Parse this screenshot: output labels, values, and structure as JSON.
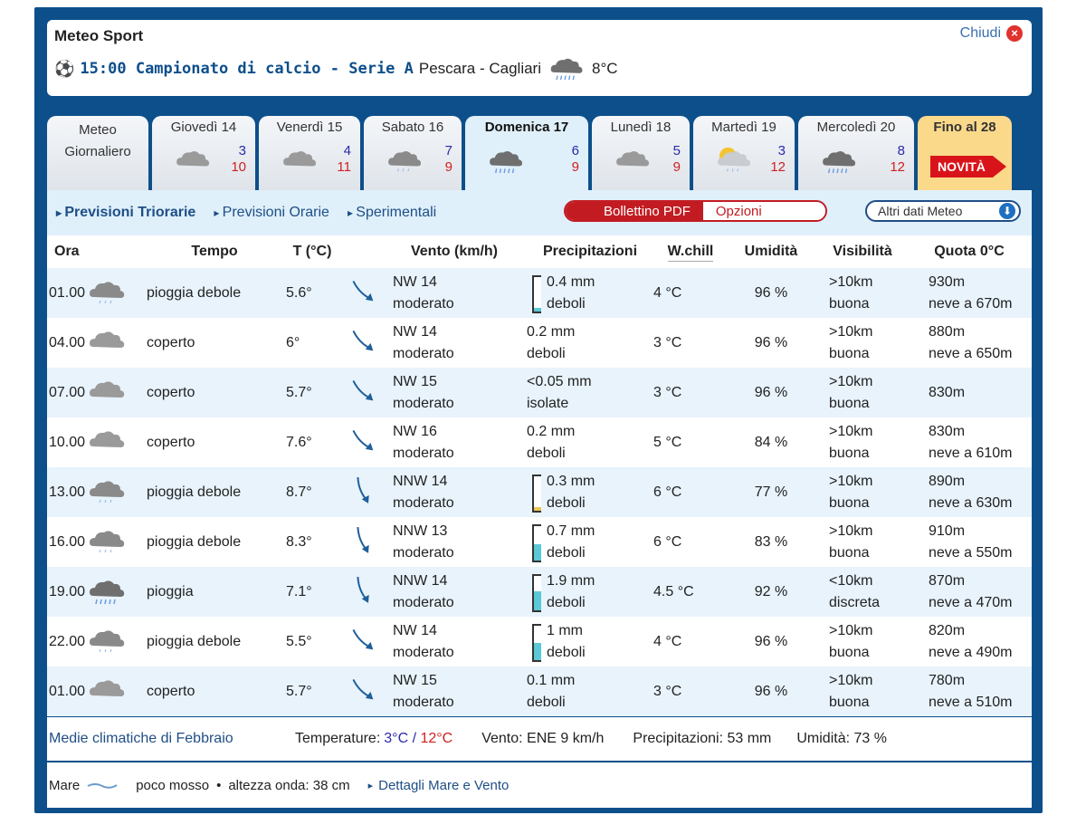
{
  "header": {
    "title": "Meteo Sport",
    "event": "15:00 Campionato di calcio - Serie A",
    "match": "Pescara - Cagliari",
    "temp": "8°C",
    "close": "Chiudi"
  },
  "tabs": [
    {
      "label": "Meteo Giornaliero"
    },
    {
      "label": "Giovedì 14",
      "icon": "cloud",
      "min": "3",
      "max": "10"
    },
    {
      "label": "Venerdì 15",
      "icon": "cloud",
      "min": "4",
      "max": "11"
    },
    {
      "label": "Sabato 16",
      "icon": "rain-light",
      "min": "7",
      "max": "9"
    },
    {
      "label": "Domenica 17",
      "icon": "rain",
      "min": "6",
      "max": "9",
      "active": true
    },
    {
      "label": "Lunedì 18",
      "icon": "cloud",
      "min": "5",
      "max": "9"
    },
    {
      "label": "Martedì 19",
      "icon": "sun-cloud-rain",
      "min": "3",
      "max": "12"
    },
    {
      "label": "Mercoledì 20",
      "icon": "rain",
      "min": "8",
      "max": "12"
    },
    {
      "label": "Fino al 28",
      "badge": "NOVITÀ"
    }
  ],
  "subnav": {
    "links": [
      "Previsioni Triorarie",
      "Previsioni Orarie",
      "Sperimentali"
    ],
    "pdf": "Bollettino PDF",
    "options": "Opzioni",
    "altri": "Altri dati Meteo"
  },
  "columns": [
    "Ora",
    "Tempo",
    "T (°C)",
    "",
    "Vento (km/h)",
    "Precipitazioni",
    "W.chill",
    "Umidità",
    "Visibilità",
    "Quota 0°C"
  ],
  "rows": [
    {
      "ora": "01.00",
      "icon": "rain-light",
      "tempo": "pioggia debole",
      "t": "5.6°",
      "dir": "NW",
      "wind": "NW 14",
      "wdesc": "moderato",
      "p": "0.4 mm",
      "pdesc": "deboli",
      "pfill": 0.1,
      "wc": "4 °C",
      "um": "96 %",
      "vis": ">10km",
      "visd": "buona",
      "q": "930m",
      "qn": "neve a 670m"
    },
    {
      "ora": "04.00",
      "icon": "cloud",
      "tempo": "coperto",
      "t": "6°",
      "dir": "NW",
      "wind": "NW 14",
      "wdesc": "moderato",
      "p": "0.2 mm",
      "pdesc": "deboli",
      "wc": "3 °C",
      "um": "96 %",
      "vis": ">10km",
      "visd": "buona",
      "q": "880m",
      "qn": "neve a 650m"
    },
    {
      "ora": "07.00",
      "icon": "cloud",
      "tempo": "coperto",
      "t": "5.7°",
      "dir": "NW",
      "wind": "NW 15",
      "wdesc": "moderato",
      "p": "<0.05 mm",
      "pdesc": "isolate",
      "wc": "3 °C",
      "um": "96 %",
      "vis": ">10km",
      "visd": "buona",
      "q": "830m",
      "qn": ""
    },
    {
      "ora": "10.00",
      "icon": "cloud",
      "tempo": "coperto",
      "t": "7.6°",
      "dir": "NW",
      "wind": "NW 16",
      "wdesc": "moderato",
      "p": "0.2 mm",
      "pdesc": "deboli",
      "wc": "5 °C",
      "um": "84 %",
      "vis": ">10km",
      "visd": "buona",
      "q": "830m",
      "qn": "neve a 610m"
    },
    {
      "ora": "13.00",
      "icon": "rain-light",
      "tempo": "pioggia debole",
      "t": "8.7°",
      "dir": "NNW",
      "wind": "NNW 14",
      "wdesc": "moderato",
      "p": "0.3 mm",
      "pdesc": "deboli",
      "pfill": 0.08,
      "wc": "6 °C",
      "um": "77 %",
      "vis": ">10km",
      "visd": "buona",
      "q": "890m",
      "qn": "neve a 630m"
    },
    {
      "ora": "16.00",
      "icon": "rain-light",
      "tempo": "pioggia debole",
      "t": "8.3°",
      "dir": "NNW",
      "wind": "NNW 13",
      "wdesc": "moderato",
      "p": "0.7 mm",
      "pdesc": "deboli",
      "pfill": 0.45,
      "wc": "6 °C",
      "um": "83 %",
      "vis": ">10km",
      "visd": "buona",
      "q": "910m",
      "qn": "neve a 550m"
    },
    {
      "ora": "19.00",
      "icon": "rain",
      "tempo": "pioggia",
      "t": "7.1°",
      "dir": "NNW",
      "wind": "NNW 14",
      "wdesc": "moderato",
      "p": "1.9 mm",
      "pdesc": "deboli",
      "pfill": 0.55,
      "wc": "4.5 °C",
      "um": "92 %",
      "vis": "<10km",
      "visd": "discreta",
      "q": "870m",
      "qn": "neve a 470m"
    },
    {
      "ora": "22.00",
      "icon": "rain-light",
      "tempo": "pioggia debole",
      "t": "5.5°",
      "dir": "NW",
      "wind": "NW 14",
      "wdesc": "moderato",
      "p": "1 mm",
      "pdesc": "deboli",
      "pfill": 0.5,
      "wc": "4 °C",
      "um": "96 %",
      "vis": ">10km",
      "visd": "buona",
      "q": "820m",
      "qn": "neve a 490m"
    },
    {
      "ora": "01.00",
      "icon": "cloud",
      "tempo": "coperto",
      "t": "5.7°",
      "dir": "NW",
      "wind": "NW 15",
      "wdesc": "moderato",
      "p": "0.1 mm",
      "pdesc": "deboli",
      "wc": "3 °C",
      "um": "96 %",
      "vis": ">10km",
      "visd": "buona",
      "q": "780m",
      "qn": "neve a 510m"
    }
  ],
  "climate": {
    "label": "Medie climatiche di Febbraio",
    "temp_label": "Temperature:",
    "tmin": "3°C",
    "sep": " / ",
    "tmax": "12°C",
    "wind": "Vento: ENE 9 km/h",
    "precip": "Precipitazioni: 53 mm",
    "hum": "Umidità: 73 %"
  },
  "sea": {
    "label": "Mare",
    "state": "poco mosso",
    "wave": "altezza onda: 38 cm",
    "link": "Dettagli Mare e Vento"
  },
  "colors": {
    "frame": "#0d4f8b",
    "min": "#2a2aa8",
    "max": "#d02020",
    "accent": "#c21c22"
  }
}
